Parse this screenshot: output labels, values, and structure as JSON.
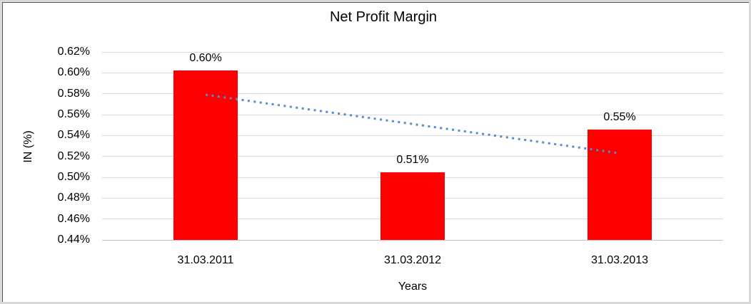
{
  "window": {
    "background": "#ffffff",
    "outer_border_color": "#d9d9d9",
    "inner_border_color": "#595959"
  },
  "chart_data": {
    "type": "bar",
    "title": "Net Profit Margin",
    "xlabel": "Years",
    "ylabel": "IN (%)",
    "categories": [
      "31.03.2011",
      "31.03.2012",
      "31.03.2013"
    ],
    "values": [
      0.602,
      0.505,
      0.546
    ],
    "data_labels": [
      "0.60%",
      "0.51%",
      "0.55%"
    ],
    "yticks": [
      "0.62%",
      "0.60%",
      "0.58%",
      "0.56%",
      "0.54%",
      "0.52%",
      "0.50%",
      "0.48%",
      "0.46%",
      "0.44%"
    ],
    "ylim": [
      0.44,
      0.62
    ],
    "ytick_step": 0.02,
    "grid": true,
    "legend": "none",
    "bar_color": "#ff0000",
    "gridline_color": "#d9d9d9",
    "axis_line_color": "#c3c3c3",
    "trendline": {
      "style": "dotted",
      "color": "#4e8fd3",
      "start_value": 0.579,
      "end_value": 0.523
    }
  }
}
